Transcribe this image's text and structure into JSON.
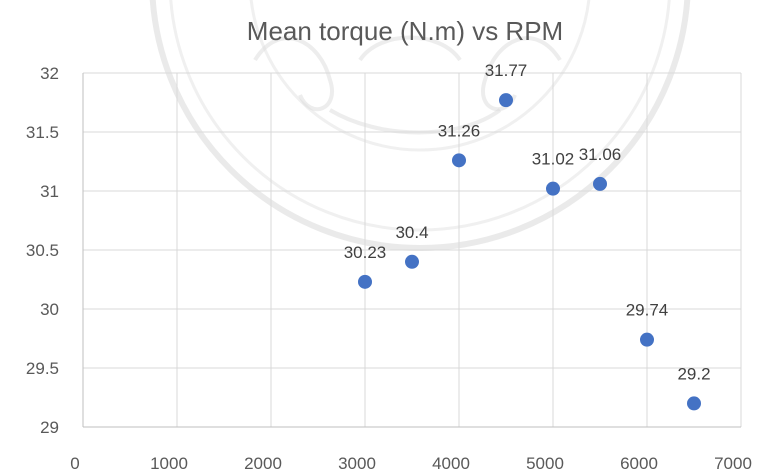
{
  "chart_data": {
    "type": "scatter",
    "title": "Mean torque (N.m) vs RPM",
    "xlabel": "",
    "ylabel": "",
    "xlim": [
      0,
      7000
    ],
    "ylim": [
      29,
      32
    ],
    "xticks": [
      0,
      1000,
      2000,
      3000,
      4000,
      5000,
      6000,
      7000
    ],
    "yticks": [
      29,
      29.5,
      30,
      30.5,
      31,
      31.5,
      32
    ],
    "grid": true,
    "legend": "none",
    "marker_color": "#4472c4",
    "points": [
      {
        "x": 3000,
        "y": 30.23,
        "label": "30.23"
      },
      {
        "x": 3500,
        "y": 30.4,
        "label": "30.4"
      },
      {
        "x": 4000,
        "y": 31.26,
        "label": "31.26"
      },
      {
        "x": 4500,
        "y": 31.77,
        "label": "31.77"
      },
      {
        "x": 5000,
        "y": 31.02,
        "label": "31.02"
      },
      {
        "x": 5500,
        "y": 31.06,
        "label": "31.06"
      },
      {
        "x": 6000,
        "y": 29.74,
        "label": "29.74"
      },
      {
        "x": 6500,
        "y": 29.2,
        "label": "29.2"
      }
    ]
  }
}
